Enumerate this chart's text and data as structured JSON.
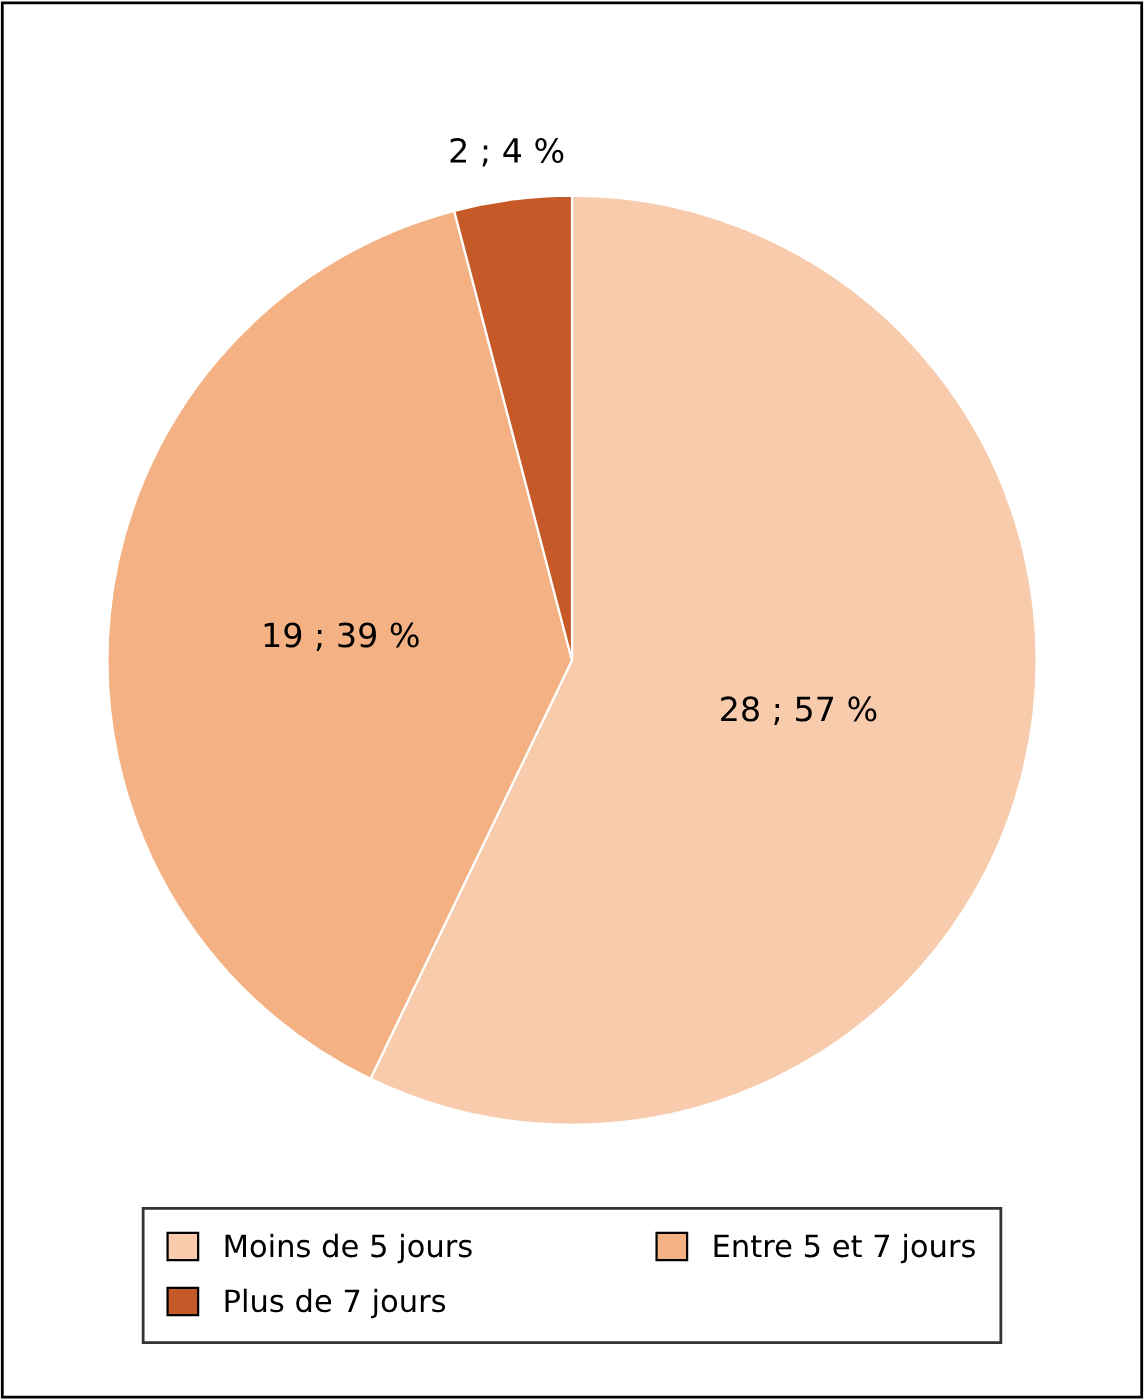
{
  "chart_data": {
    "type": "pie",
    "categories": [
      "Moins de 5 jours",
      "Entre 5 et 7 jours",
      "Plus de 7 jours"
    ],
    "values": [
      28,
      19,
      2
    ],
    "value_labels": [
      "28 ; 57 %",
      "19 ; 39 %",
      "2 ; 4 %"
    ],
    "colors": [
      "#f8cbad",
      "#f4b183",
      "#c55a28"
    ],
    "legend": "bottom"
  }
}
